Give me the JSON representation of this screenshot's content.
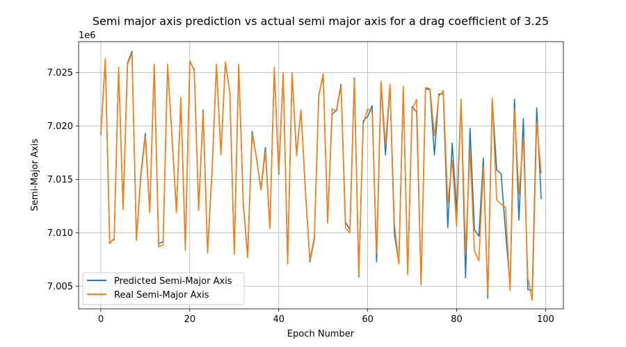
{
  "chart_data": {
    "type": "line",
    "title": "Semi major axis prediction vs actual semi major axis for a drag coefficient of 3.25",
    "xlabel": "Epoch Number",
    "ylabel": "Semi-Major Axis",
    "y_offset_label": "1e6",
    "y_scale": 1000000,
    "xlim": [
      -5,
      104
    ],
    "ylim": [
      7.0029,
      7.0279
    ],
    "x_ticks": [
      0,
      20,
      40,
      60,
      80,
      100
    ],
    "x_tick_labels": [
      "0",
      "20",
      "40",
      "60",
      "80",
      "100"
    ],
    "y_ticks": [
      7.005,
      7.01,
      7.015,
      7.02,
      7.025
    ],
    "y_tick_labels": [
      "7.005",
      "7.010",
      "7.015",
      "7.020",
      "7.025"
    ],
    "grid": true,
    "legend_position": "lower-left",
    "x": [
      0,
      1,
      2,
      3,
      4,
      5,
      6,
      7,
      8,
      9,
      10,
      11,
      12,
      13,
      14,
      15,
      16,
      17,
      18,
      19,
      20,
      21,
      22,
      23,
      24,
      25,
      26,
      27,
      28,
      29,
      30,
      31,
      32,
      33,
      34,
      35,
      36,
      37,
      38,
      39,
      40,
      41,
      42,
      43,
      44,
      45,
      46,
      47,
      48,
      49,
      50,
      51,
      52,
      53,
      54,
      55,
      56,
      57,
      58,
      59,
      60,
      61,
      62,
      63,
      64,
      65,
      66,
      67,
      68,
      69,
      70,
      71,
      72,
      73,
      74,
      75,
      76,
      77,
      78,
      79,
      80,
      81,
      82,
      83,
      84,
      85,
      86,
      87,
      88,
      89,
      90,
      91,
      92,
      93,
      94,
      95,
      96,
      97,
      98,
      99
    ],
    "series": [
      {
        "name": "Predicted Semi-Major Axis",
        "color": "#1f77b4",
        "values": [
          7.0192,
          7.0262,
          7.0091,
          7.0094,
          7.0254,
          7.0123,
          7.0259,
          7.027,
          7.0094,
          7.0155,
          7.0193,
          7.012,
          7.0257,
          7.009,
          7.0092,
          7.0256,
          7.0191,
          7.012,
          7.0225,
          7.0085,
          7.026,
          7.0253,
          7.0122,
          7.0215,
          7.0082,
          7.0158,
          7.0257,
          7.0174,
          7.0259,
          7.0232,
          7.0081,
          7.0257,
          7.013,
          7.0078,
          7.0195,
          7.017,
          7.0141,
          7.018,
          7.0105,
          7.0253,
          7.0155,
          7.0249,
          7.0072,
          7.0249,
          7.0174,
          7.0215,
          7.014,
          7.0073,
          7.0094,
          7.0229,
          7.0247,
          7.0111,
          7.0211,
          7.0215,
          7.0239,
          7.011,
          7.0103,
          7.0245,
          7.0059,
          7.0205,
          7.0209,
          7.0219,
          7.0073,
          7.024,
          7.0173,
          7.0238,
          7.0099,
          7.0072,
          7.0235,
          7.0062,
          7.0218,
          7.0213,
          7.0052,
          7.0235,
          7.0234,
          7.0173,
          7.023,
          7.023,
          7.0105,
          7.0184,
          7.012,
          7.0224,
          7.0058,
          7.0198,
          7.0103,
          7.0097,
          7.017,
          7.0039,
          7.0225,
          7.0159,
          7.0155,
          7.0101,
          7.0051,
          7.0225,
          7.0112,
          7.0207,
          7.0047,
          7.0046,
          7.0217,
          7.0132
        ]
      },
      {
        "name": "Real Semi-Major Axis",
        "color": "#ff7f0e",
        "values": [
          7.0193,
          7.0263,
          7.009,
          7.0095,
          7.0255,
          7.0122,
          7.0258,
          7.0268,
          7.0093,
          7.0152,
          7.019,
          7.0119,
          7.0258,
          7.0087,
          7.0089,
          7.0258,
          7.0189,
          7.0119,
          7.0227,
          7.0084,
          7.0261,
          7.0252,
          7.0121,
          7.0213,
          7.0081,
          7.0156,
          7.0258,
          7.0173,
          7.026,
          7.0232,
          7.008,
          7.0258,
          7.0128,
          7.0077,
          7.0192,
          7.0171,
          7.014,
          7.0176,
          7.0104,
          7.0255,
          7.0157,
          7.025,
          7.0071,
          7.025,
          7.0172,
          7.0215,
          7.0139,
          7.0075,
          7.0096,
          7.0228,
          7.0249,
          7.0109,
          7.0216,
          7.0214,
          7.0237,
          7.0105,
          7.01,
          7.0243,
          7.0061,
          7.0202,
          7.0216,
          7.0213,
          7.0081,
          7.0242,
          7.0182,
          7.0239,
          7.0108,
          7.0071,
          7.0237,
          7.0061,
          7.0216,
          7.0225,
          7.0053,
          7.0236,
          7.0235,
          7.0191,
          7.0228,
          7.0233,
          7.0128,
          7.0168,
          7.0106,
          7.0225,
          7.0081,
          7.0178,
          7.0083,
          7.0074,
          7.0162,
          7.0043,
          7.0226,
          7.0131,
          7.0127,
          7.0124,
          7.0046,
          7.0216,
          7.0136,
          7.0189,
          7.0058,
          7.0037,
          7.0204,
          7.0156
        ]
      }
    ]
  }
}
